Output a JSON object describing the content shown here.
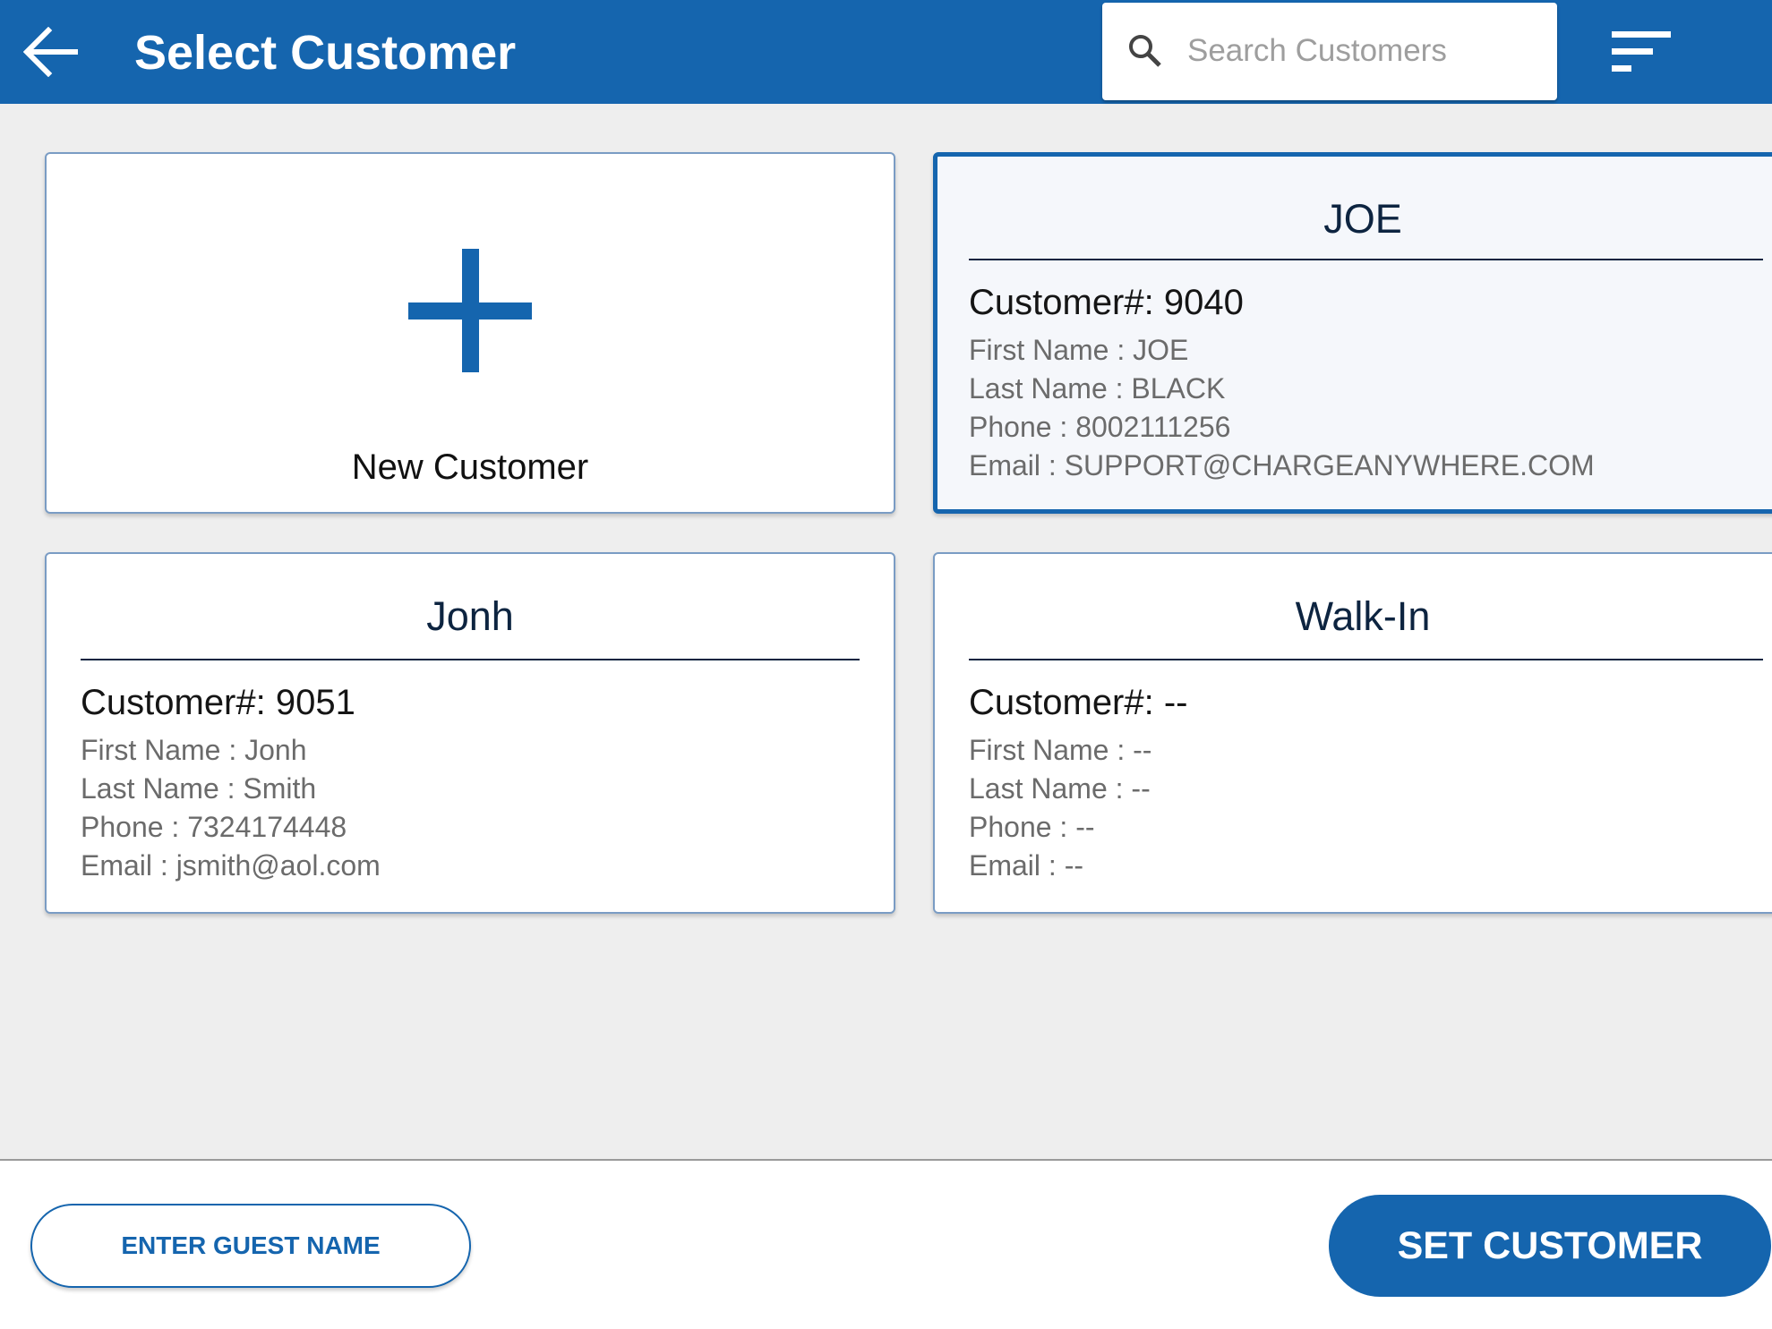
{
  "header": {
    "title": "Select Customer",
    "back_icon": "arrow-left-icon",
    "search_placeholder": "Search Customers",
    "search_value": "",
    "filter_icon": "sort-lines-icon"
  },
  "new_customer": {
    "label": "New Customer",
    "icon": "plus-icon"
  },
  "customers": [
    {
      "name": "JOE",
      "number": "Customer#: 9040",
      "first": "First Name : JOE",
      "last": "Last Name : BLACK",
      "phone": "Phone : 8002111256",
      "email": "Email : SUPPORT@CHARGEANYWHERE.COM",
      "selected": true
    },
    {
      "name": "Jonh",
      "number": "Customer#: 9051",
      "first": "First Name : Jonh",
      "last": "Last Name : Smith",
      "phone": "Phone : 7324174448",
      "email": "Email : jsmith@aol.com",
      "selected": false
    },
    {
      "name": "Walk-In",
      "number": "Customer#: --",
      "first": "First Name : --",
      "last": "Last Name : --",
      "phone": "Phone : --",
      "email": "Email : --",
      "selected": false
    }
  ],
  "footer": {
    "guest_label": "ENTER GUEST NAME",
    "set_label": "SET CUSTOMER"
  },
  "colors": {
    "primary": "#1565ae",
    "background": "#eeeeee"
  }
}
